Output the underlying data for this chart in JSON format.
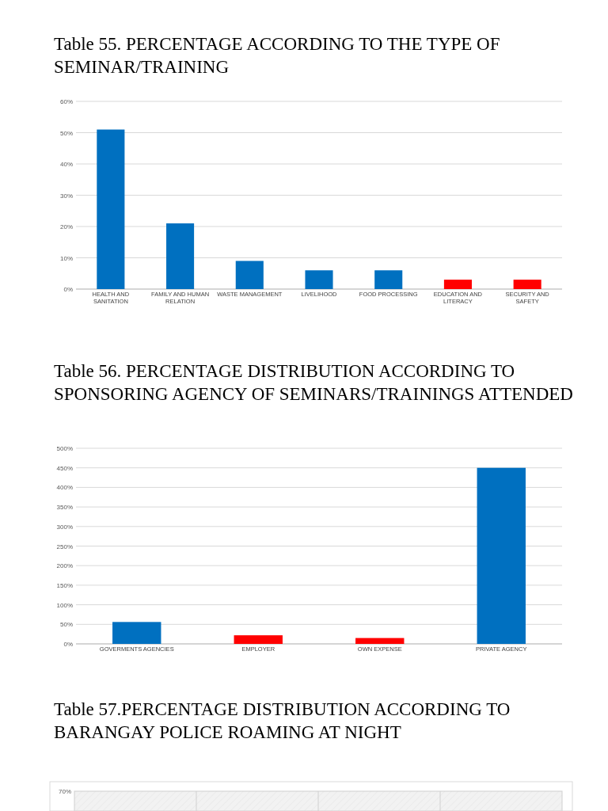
{
  "chart_data": [
    {
      "type": "bar",
      "title": "Table 55. PERCENTAGE ACCORDING TO THE TYPE OF SEMINAR/TRAINING",
      "categories": [
        "HEALTH AND SANITATION",
        "FAMILY AND HUMAN RELATION",
        "WASTE MANAGEMENT",
        "LIVELIHOOD",
        "FOOD PROCESSING",
        "EDUCATION AND LITERACY",
        "SECURITY AND SAFETY"
      ],
      "values": [
        51,
        21,
        9,
        6,
        6,
        3,
        3
      ],
      "colors": [
        "#0070c0",
        "#0070c0",
        "#0070c0",
        "#0070c0",
        "#0070c0",
        "#ff0000",
        "#ff0000"
      ],
      "ylim": [
        0,
        60
      ],
      "yticks": [
        {
          "value": 0,
          "label": "0%"
        },
        {
          "value": 10,
          "label": "10%"
        },
        {
          "value": 20,
          "label": "20%"
        },
        {
          "value": 30,
          "label": "30%"
        },
        {
          "value": 40,
          "label": "40%"
        },
        {
          "value": 50,
          "label": "50%"
        },
        {
          "value": 60,
          "label": "60%"
        }
      ],
      "grid": "y"
    },
    {
      "type": "bar",
      "title": "Table 56. PERCENTAGE DISTRIBUTION ACCORDING TO SPONSORING AGENCY OF SEMINARS/TRAININGS ATTENDED",
      "categories": [
        "GOVERMENTS AGENCIES",
        "EMPLOYER",
        "OWN EXPENSE",
        "PRIVATE AGENCY"
      ],
      "values": [
        56,
        22,
        15,
        450
      ],
      "colors": [
        "#0070c0",
        "#ff0000",
        "#ff0000",
        "#0070c0"
      ],
      "ylim": [
        0,
        500
      ],
      "yticks": [
        {
          "value": 0,
          "label": "0%"
        },
        {
          "value": 50,
          "label": "50%"
        },
        {
          "value": 100,
          "label": "100%"
        },
        {
          "value": 150,
          "label": "150%"
        },
        {
          "value": 200,
          "label": "200%"
        },
        {
          "value": 250,
          "label": "250%"
        },
        {
          "value": 300,
          "label": "300%"
        },
        {
          "value": 350,
          "label": "350%"
        },
        {
          "value": 400,
          "label": "400%"
        },
        {
          "value": 450,
          "label": "450%"
        },
        {
          "value": 500,
          "label": "500%"
        }
      ],
      "grid": "y"
    },
    {
      "type": "other",
      "title": "Table 57.PERCENTAGE DISTRIBUTION ACCORDING TO BARANGAY POLICE ROAMING AT NIGHT",
      "annotations": [
        "70%"
      ]
    }
  ]
}
